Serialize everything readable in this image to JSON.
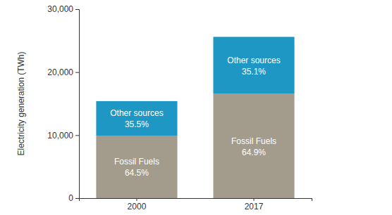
{
  "chart_data": {
    "type": "bar",
    "stacked": true,
    "categories": [
      "2000",
      "2017"
    ],
    "y_label": "Electricity generation (TWh)",
    "ylim": [
      0,
      30000
    ],
    "yticks": [
      0,
      {
        "value": 10000,
        "label": "10,000"
      },
      {
        "value": 20000,
        "label": "20,000"
      },
      {
        "value": 30000,
        "label": "30,000"
      }
    ],
    "series": [
      {
        "name": "Fossil Fuels",
        "color": "#a39b8b",
        "values": [
          9930,
          16610
        ],
        "share_labels": [
          "64.5%",
          "64.9%"
        ]
      },
      {
        "name": "Other sources",
        "color": "#1f97c4",
        "values": [
          5470,
          8990
        ],
        "share_labels": [
          "35.5%",
          "35.1%"
        ]
      }
    ]
  }
}
